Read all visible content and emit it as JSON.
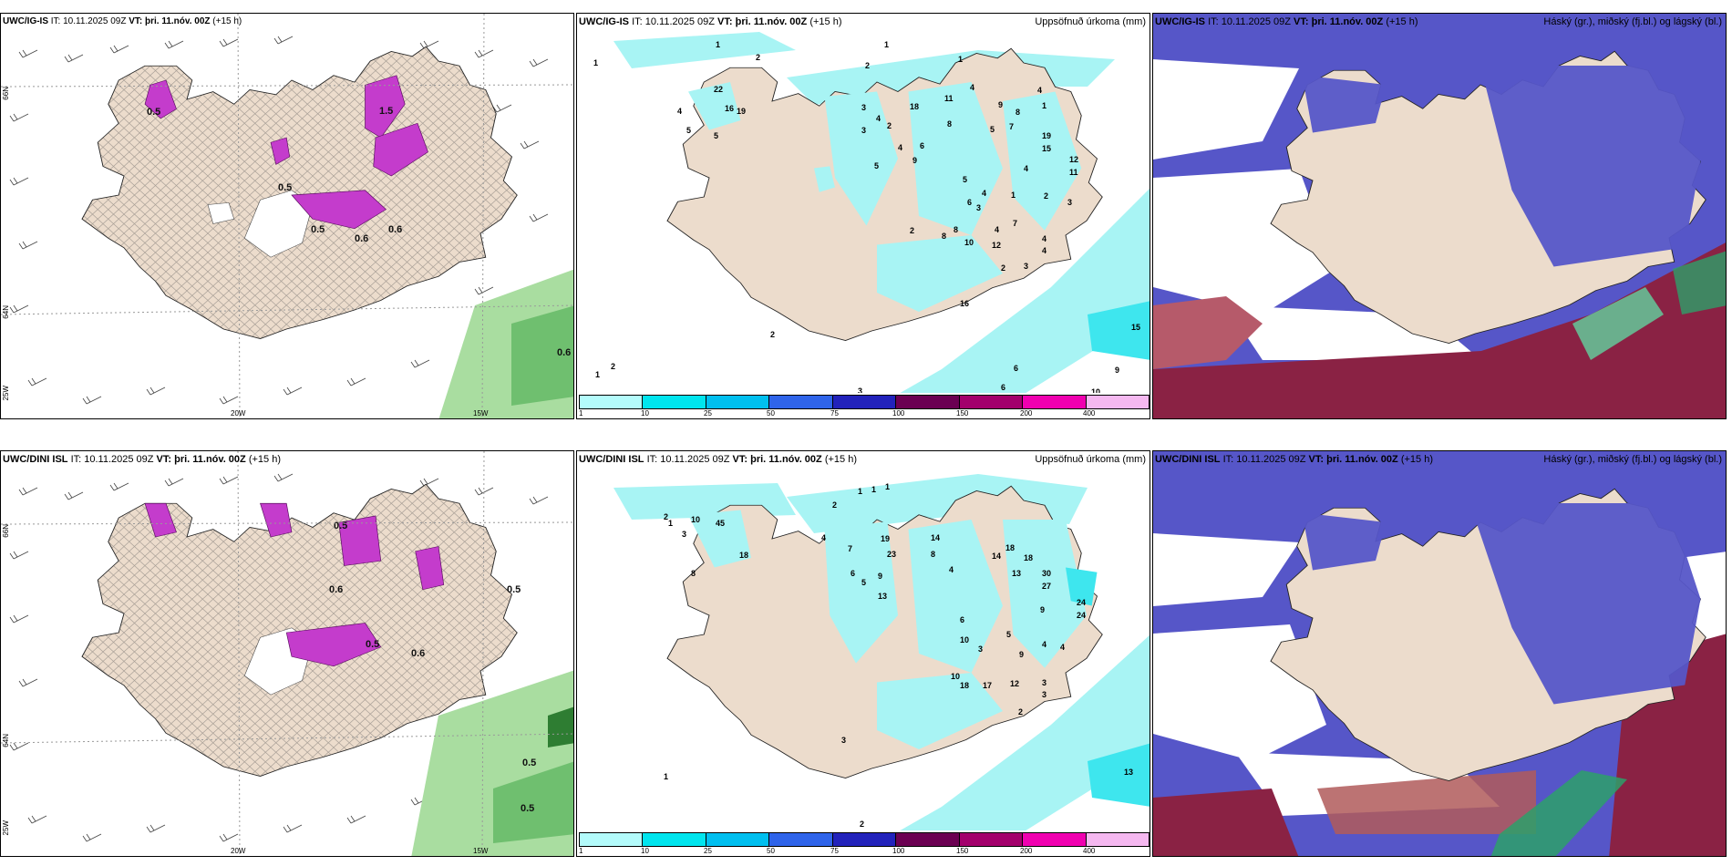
{
  "panels": {
    "p1": {
      "title_model": "UWC/IG-IS",
      "title_it": "IT: 10.11.2025 09Z",
      "title_vt": "VT: þri. 11.nóv. 00Z",
      "title_lead": "(+15 h)",
      "right_title": ""
    },
    "p2": {
      "title_model": "UWC/IG-IS",
      "title_it": "IT: 10.11.2025 09Z",
      "title_vt": "VT: þri. 11.nóv. 00Z",
      "title_lead": "(+15 h)",
      "right_title": "Uppsöfnuð úrkoma (mm)"
    },
    "p3": {
      "title_model": "UWC/IG-IS",
      "title_it": "IT: 10.11.2025 09Z",
      "title_vt": "VT: þri. 11.nóv. 00Z",
      "title_lead": "(+15 h)",
      "right_title": "Háský (gr.), miðský (fj.bl.) og lágský (bl.)"
    },
    "p4": {
      "title_model": "UWC/DINI ISL",
      "title_it": "IT: 10.11.2025 09Z",
      "title_vt": "VT: þri. 11.nóv. 00Z",
      "title_lead": "(+15 h)",
      "right_title": ""
    },
    "p5": {
      "title_model": "UWC/DINI ISL",
      "title_it": "IT: 10.11.2025 09Z",
      "title_vt": "VT: þri. 11.nóv. 00Z",
      "title_lead": "(+15 h)",
      "right_title": "Uppsöfnuð úrkoma (mm)"
    },
    "p6": {
      "title_model": "UWC/DINI ISL",
      "title_it": "IT: 10.11.2025 09Z",
      "title_vt": "VT: þri. 11.nóv. 00Z",
      "title_lead": "(+15 h)",
      "right_title": "Háský (gr.), miðský (fj.bl.) og lágský (bl.)"
    }
  },
  "axes": {
    "lat_66": "66N",
    "lat_64": "64N",
    "lon_25": "25W",
    "lon_20": "20W",
    "lon_15": "15W"
  },
  "wind_labels": {
    "p1": [
      "0.6"
    ],
    "p4": [
      "0.5",
      "0.5"
    ]
  },
  "ice_labels": {
    "p1": [
      "0.5",
      "1.5",
      "0.5",
      "0.6",
      "0.5",
      "0.6"
    ],
    "p4": [
      "0.5",
      "0.6",
      "0.5",
      "0.6",
      "0.5"
    ]
  },
  "precip_numbers": {
    "p2": [
      "1",
      "2",
      "1",
      "1",
      "2",
      "1",
      "22",
      "4",
      "5",
      "16",
      "19",
      "5",
      "3",
      "18",
      "11",
      "4",
      "9",
      "8",
      "3",
      "4",
      "2",
      "8",
      "4",
      "4",
      "1",
      "19",
      "15",
      "5",
      "6",
      "9",
      "5",
      "7",
      "12",
      "5",
      "11",
      "4",
      "4",
      "1",
      "2",
      "3",
      "6",
      "3",
      "4",
      "8",
      "8",
      "2",
      "10",
      "12",
      "7",
      "4",
      "3",
      "2",
      "4",
      "16",
      "15",
      "2",
      "1",
      "2",
      "9",
      "6",
      "6",
      "10",
      "3"
    ],
    "p5": [
      "1",
      "1",
      "1",
      "2",
      "1",
      "2",
      "10",
      "45",
      "8",
      "18",
      "3",
      "4",
      "7",
      "19",
      "14",
      "23",
      "6",
      "9",
      "18",
      "8",
      "14",
      "18",
      "5",
      "13",
      "13",
      "30",
      "27",
      "4",
      "24",
      "24",
      "9",
      "6",
      "5",
      "10",
      "3",
      "4",
      "9",
      "10",
      "18",
      "17",
      "12",
      "3",
      "4",
      "3",
      "2",
      "1",
      "3",
      "2",
      "13"
    ]
  },
  "legend": {
    "ticks": [
      "1",
      "10",
      "25",
      "50",
      "75",
      "100",
      "150",
      "200",
      "400"
    ],
    "colors": [
      "#b3fbfb",
      "#00e5ee",
      "#00bfef",
      "#2f64ea",
      "#2222bb",
      "#6b0052",
      "#a3006c",
      "#f000b0",
      "#f5b8f0"
    ]
  },
  "colors": {
    "land": "#ecdccc",
    "ice": "#c43ccc",
    "precip": "#a8f4f4",
    "hi_cloud": "#4a4ec6",
    "low_cloud": "#8a2244",
    "wind_green": "#7dce7d"
  }
}
